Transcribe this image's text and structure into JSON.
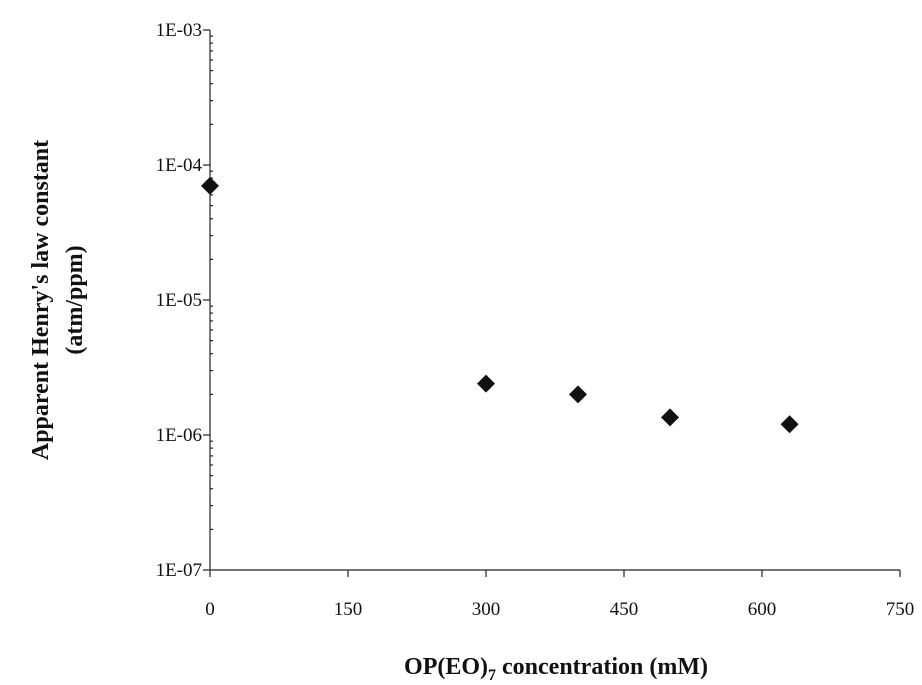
{
  "chart_data": {
    "type": "scatter",
    "title": "",
    "xlabel_main": "OP(EO)",
    "xlabel_sub": "7",
    "xlabel_rest": " concentration (mM)",
    "ylabel_line1": "Apparent Henry's law constant",
    "ylabel_line2": "(atm/ppm)",
    "x_scale": "linear",
    "y_scale": "log",
    "xlim": [
      0,
      750
    ],
    "ylim": [
      1e-07,
      0.001
    ],
    "x_ticks": [
      0,
      150,
      300,
      450,
      600,
      750
    ],
    "x_tick_labels": [
      "0",
      "150",
      "300",
      "450",
      "600",
      "750"
    ],
    "y_ticks": [
      0.001,
      0.0001,
      1e-05,
      1e-06,
      1e-07
    ],
    "y_tick_labels": [
      "1E-03",
      "1E-04",
      "1E-05",
      "1E-06",
      "1E-07"
    ],
    "grid": false,
    "legend": "none",
    "marker": "diamond",
    "marker_color": "#111111",
    "series": [
      {
        "x": [
          0,
          300,
          400,
          500,
          630
        ],
        "y": [
          7e-05,
          2.4e-06,
          2e-06,
          1.35e-06,
          1.2e-06
        ]
      }
    ]
  }
}
